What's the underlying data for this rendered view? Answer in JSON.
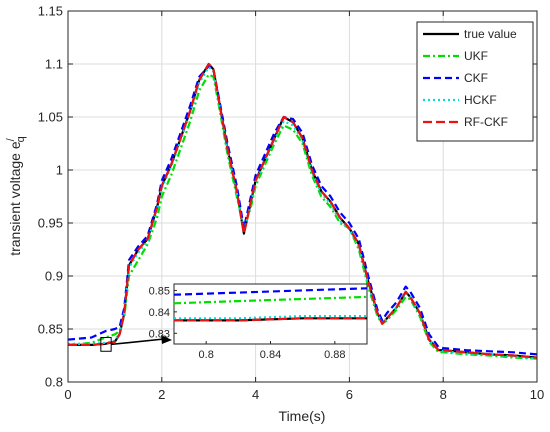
{
  "chart_data": {
    "type": "line",
    "xlabel": "Time(s)",
    "ylabel": "transient voltage e",
    "ylabel_sup": "/",
    "ylabel_sub": "q",
    "xlim": [
      0,
      10
    ],
    "ylim": [
      0.8,
      1.15
    ],
    "xticks": [
      "0",
      "2",
      "4",
      "6",
      "8",
      "10"
    ],
    "yticks": [
      "0.8",
      "0.85",
      "0.9",
      "0.95",
      "1",
      "1.05",
      "1.1",
      "1.15"
    ],
    "grid": true,
    "legend_position": "top-right",
    "series": [
      {
        "name": "true value",
        "color": "#000000",
        "dash": "solid",
        "x": [
          0,
          0.5,
          0.8,
          1.0,
          1.1,
          1.2,
          1.3,
          1.5,
          1.7,
          1.9,
          2.0,
          2.2,
          2.4,
          2.6,
          2.8,
          3.0,
          3.1,
          3.2,
          3.4,
          3.6,
          3.75,
          3.9,
          4.0,
          4.2,
          4.4,
          4.6,
          4.8,
          5.0,
          5.2,
          5.4,
          5.6,
          5.8,
          6.0,
          6.2,
          6.4,
          6.6,
          6.7,
          6.8,
          7.0,
          7.2,
          7.3,
          7.5,
          7.7,
          7.9,
          8.0,
          8.5,
          9.0,
          9.5,
          10.0
        ],
        "y": [
          0.835,
          0.835,
          0.836,
          0.838,
          0.845,
          0.865,
          0.91,
          0.925,
          0.935,
          0.965,
          0.985,
          1.005,
          1.03,
          1.055,
          1.085,
          1.1,
          1.095,
          1.07,
          1.02,
          0.98,
          0.94,
          0.97,
          0.99,
          1.01,
          1.03,
          1.05,
          1.045,
          1.03,
          1.0,
          0.98,
          0.97,
          0.955,
          0.945,
          0.93,
          0.895,
          0.865,
          0.855,
          0.86,
          0.87,
          0.885,
          0.88,
          0.865,
          0.84,
          0.83,
          0.83,
          0.828,
          0.826,
          0.825,
          0.823
        ]
      },
      {
        "name": "UKF",
        "color": "#00dd00",
        "dash": "dashdot",
        "x": [
          0,
          0.5,
          0.8,
          1.0,
          1.1,
          1.2,
          1.3,
          1.5,
          1.7,
          1.9,
          2.0,
          2.2,
          2.4,
          2.6,
          2.8,
          3.0,
          3.1,
          3.2,
          3.4,
          3.6,
          3.75,
          3.9,
          4.0,
          4.2,
          4.4,
          4.6,
          4.8,
          5.0,
          5.2,
          5.4,
          5.6,
          5.8,
          6.0,
          6.2,
          6.4,
          6.6,
          6.7,
          6.8,
          7.0,
          7.2,
          7.3,
          7.5,
          7.7,
          7.9,
          8.0,
          8.5,
          9.0,
          9.5,
          10.0
        ],
        "y": [
          0.835,
          0.837,
          0.842,
          0.845,
          0.848,
          0.862,
          0.9,
          0.915,
          0.93,
          0.955,
          0.975,
          0.995,
          1.02,
          1.045,
          1.075,
          1.09,
          1.088,
          1.065,
          1.015,
          0.975,
          0.945,
          0.965,
          0.985,
          1.005,
          1.025,
          1.042,
          1.038,
          1.025,
          0.995,
          0.975,
          0.965,
          0.95,
          0.945,
          0.925,
          0.89,
          0.862,
          0.855,
          0.858,
          0.868,
          0.88,
          0.878,
          0.862,
          0.838,
          0.828,
          0.828,
          0.826,
          0.825,
          0.823,
          0.822
        ]
      },
      {
        "name": "CKF",
        "color": "#0000ff",
        "dash": "dashed",
        "x": [
          0,
          0.5,
          0.8,
          1.0,
          1.1,
          1.2,
          1.3,
          1.5,
          1.7,
          1.9,
          2.0,
          2.2,
          2.4,
          2.6,
          2.8,
          3.0,
          3.1,
          3.2,
          3.4,
          3.6,
          3.75,
          3.9,
          4.0,
          4.2,
          4.4,
          4.6,
          4.8,
          5.0,
          5.2,
          5.4,
          5.6,
          5.8,
          6.0,
          6.2,
          6.4,
          6.6,
          6.7,
          6.8,
          7.0,
          7.2,
          7.3,
          7.5,
          7.7,
          7.9,
          8.0,
          8.5,
          9.0,
          9.5,
          10.0
        ],
        "y": [
          0.84,
          0.842,
          0.848,
          0.85,
          0.852,
          0.87,
          0.915,
          0.928,
          0.938,
          0.968,
          0.99,
          1.01,
          1.035,
          1.06,
          1.088,
          1.098,
          1.095,
          1.072,
          1.025,
          0.985,
          0.945,
          0.975,
          0.995,
          1.015,
          1.035,
          1.05,
          1.048,
          1.035,
          1.005,
          0.985,
          0.975,
          0.96,
          0.95,
          0.935,
          0.9,
          0.868,
          0.858,
          0.865,
          0.875,
          0.89,
          0.885,
          0.87,
          0.845,
          0.833,
          0.832,
          0.83,
          0.829,
          0.828,
          0.826
        ]
      },
      {
        "name": "HCKF",
        "color": "#00dddd",
        "dash": "dotted",
        "x": [
          0,
          0.5,
          0.8,
          1.0,
          1.1,
          1.2,
          1.3,
          1.5,
          1.7,
          1.9,
          2.0,
          2.2,
          2.4,
          2.6,
          2.8,
          3.0,
          3.1,
          3.2,
          3.4,
          3.6,
          3.75,
          3.9,
          4.0,
          4.2,
          4.4,
          4.6,
          4.8,
          5.0,
          5.2,
          5.4,
          5.6,
          5.8,
          6.0,
          6.2,
          6.4,
          6.6,
          6.7,
          6.8,
          7.0,
          7.2,
          7.3,
          7.5,
          7.7,
          7.9,
          8.0,
          8.5,
          9.0,
          9.5,
          10.0
        ],
        "y": [
          0.836,
          0.836,
          0.837,
          0.839,
          0.846,
          0.866,
          0.908,
          0.922,
          0.933,
          0.962,
          0.983,
          1.003,
          1.028,
          1.053,
          1.082,
          1.097,
          1.093,
          1.068,
          1.018,
          0.978,
          0.942,
          0.968,
          0.988,
          1.008,
          1.028,
          1.046,
          1.042,
          1.028,
          0.998,
          0.978,
          0.968,
          0.952,
          0.944,
          0.928,
          0.892,
          0.864,
          0.856,
          0.86,
          0.87,
          0.884,
          0.88,
          0.864,
          0.84,
          0.83,
          0.829,
          0.827,
          0.826,
          0.824,
          0.822
        ]
      },
      {
        "name": "RF-CKF",
        "color": "#ee1111",
        "dash": "longdash",
        "x": [
          0,
          0.5,
          0.8,
          1.0,
          1.1,
          1.2,
          1.3,
          1.5,
          1.7,
          1.9,
          2.0,
          2.2,
          2.4,
          2.6,
          2.8,
          3.0,
          3.1,
          3.2,
          3.4,
          3.6,
          3.75,
          3.9,
          4.0,
          4.2,
          4.4,
          4.6,
          4.8,
          5.0,
          5.2,
          5.4,
          5.6,
          5.8,
          6.0,
          6.2,
          6.4,
          6.6,
          6.7,
          6.8,
          7.0,
          7.2,
          7.3,
          7.5,
          7.7,
          7.9,
          8.0,
          8.5,
          9.0,
          9.5,
          10.0
        ],
        "y": [
          0.835,
          0.835,
          0.836,
          0.838,
          0.845,
          0.865,
          0.91,
          0.925,
          0.935,
          0.965,
          0.985,
          1.005,
          1.03,
          1.055,
          1.085,
          1.1,
          1.095,
          1.07,
          1.02,
          0.98,
          0.94,
          0.97,
          0.99,
          1.01,
          1.03,
          1.05,
          1.045,
          1.03,
          1.0,
          0.98,
          0.97,
          0.955,
          0.945,
          0.93,
          0.895,
          0.865,
          0.855,
          0.86,
          0.87,
          0.885,
          0.88,
          0.865,
          0.84,
          0.83,
          0.83,
          0.828,
          0.826,
          0.825,
          0.823
        ]
      }
    ],
    "inset": {
      "xlim": [
        0.78,
        0.9
      ],
      "ylim": [
        0.825,
        0.853
      ],
      "xticks": [
        "0.8",
        "0.84",
        "0.88"
      ],
      "yticks": [
        "0.83",
        "0.84",
        "0.85"
      ],
      "source_region": {
        "x": [
          0.7,
          0.92
        ],
        "y": [
          0.829,
          0.842
        ]
      },
      "series": [
        {
          "name": "true value",
          "x": [
            0.78,
            0.82,
            0.86,
            0.9
          ],
          "y": [
            0.836,
            0.836,
            0.837,
            0.837
          ]
        },
        {
          "name": "UKF",
          "x": [
            0.78,
            0.82,
            0.86,
            0.9
          ],
          "y": [
            0.844,
            0.845,
            0.846,
            0.847
          ]
        },
        {
          "name": "CKF",
          "x": [
            0.78,
            0.82,
            0.86,
            0.9
          ],
          "y": [
            0.848,
            0.849,
            0.85,
            0.851
          ]
        },
        {
          "name": "HCKF",
          "x": [
            0.78,
            0.82,
            0.86,
            0.9
          ],
          "y": [
            0.837,
            0.837,
            0.838,
            0.838
          ]
        },
        {
          "name": "RF-CKF",
          "x": [
            0.78,
            0.82,
            0.86,
            0.9
          ],
          "y": [
            0.836,
            0.836,
            0.837,
            0.837
          ]
        }
      ]
    }
  }
}
